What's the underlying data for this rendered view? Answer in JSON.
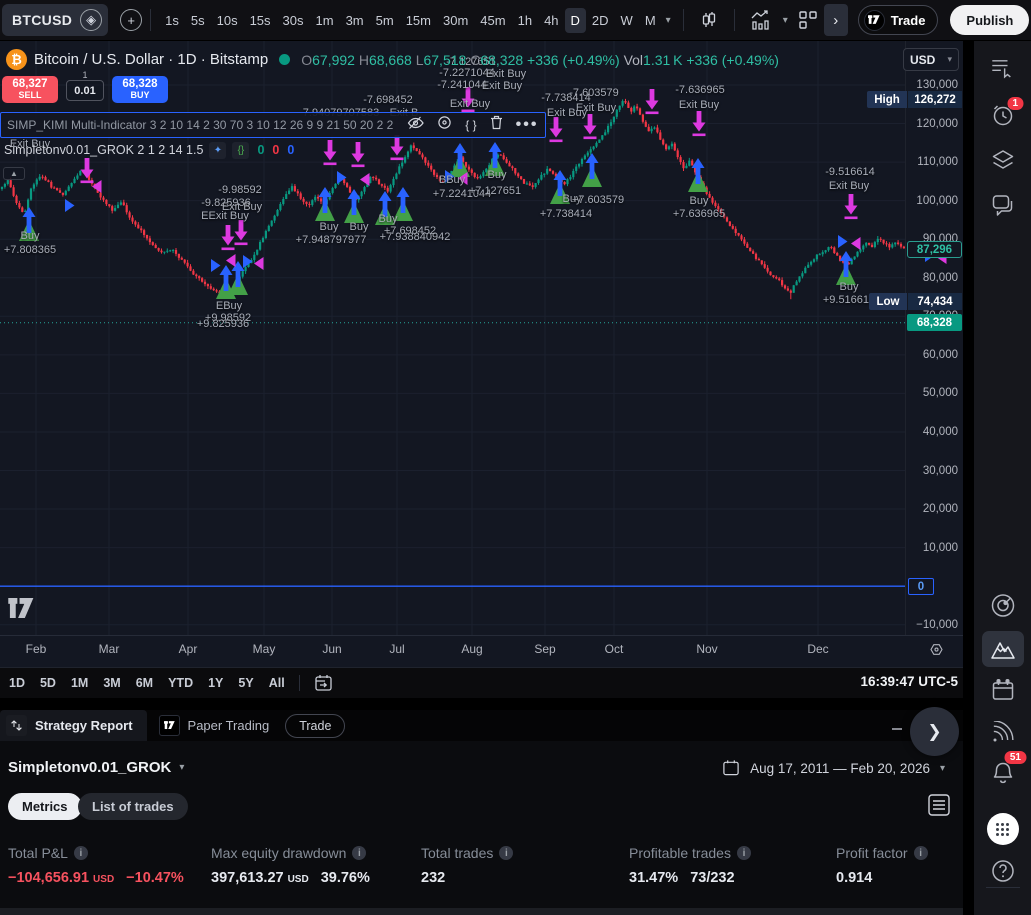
{
  "toolbar": {
    "symbol": "BTCUSD",
    "timeframes": [
      "1s",
      "5s",
      "10s",
      "15s",
      "30s",
      "1m",
      "3m",
      "5m",
      "15m",
      "30m",
      "45m",
      "1h",
      "4h",
      "D",
      "2D",
      "W",
      "M"
    ],
    "selected_timeframe": "D",
    "trade_label": "Trade",
    "publish_label": "Publish"
  },
  "header": {
    "title": "Bitcoin / U.S. Dollar · 1D · Bitstamp",
    "o_label": "O",
    "o": "67,992",
    "h_label": "H",
    "h": "68,668",
    "l_label": "L",
    "l": "67,518",
    "c_label": "C",
    "c": "68,328",
    "change": "+336 (+0.49%)",
    "vol_label": "Vol",
    "vol": "1.31 K",
    "vol_change": "+336 (+0.49%)",
    "currency": "USD"
  },
  "order_panel": {
    "sell_price": "68,327",
    "sell_label": "SELL",
    "spread_top": "1",
    "spread": "0.01",
    "buy_price": "68,328",
    "buy_label": "BUY"
  },
  "legend": {
    "row1": "SIMP_KIMI Multi-Indicator 3 2 10 14 2 30 70 3 10 12 26 9 9 21 50 20 2 2",
    "row2": "Simpletonv0.01_GROK 2 1 2 14 1.5",
    "row2_values": [
      "0",
      "0",
      "0"
    ],
    "row2_value_colors": [
      "#089981",
      "#f23645",
      "#2962ff"
    ]
  },
  "price_axis": {
    "high_label": "High",
    "high": "126,272",
    "low_label": "Low",
    "low": "74,434",
    "last": "87,296",
    "rt": "68,328",
    "zero": "0"
  },
  "bottom_toolbar": {
    "ranges": [
      "1D",
      "5D",
      "1M",
      "3M",
      "6M",
      "YTD",
      "1Y",
      "5Y",
      "All"
    ],
    "clock": "16:39:47 UTC-5"
  },
  "panel": {
    "tab_strategy": "Strategy Report",
    "tab_paper": "Paper Trading",
    "trade_button": "Trade",
    "strategy_name": "Simpletonv0.01_GROK",
    "date_range": "Aug 17, 2011 — Feb 20, 2026",
    "pill_metrics": "Metrics",
    "pill_trades": "List of trades",
    "metrics": [
      {
        "label": "Total P&L",
        "v1": "−104,656.91",
        "unit": "USD",
        "v2": "−10.47%",
        "color": "#f7525f",
        "x": 8
      },
      {
        "label": "Max equity drawdown",
        "v1": "397,613.27",
        "unit": "USD",
        "v2": "39.76%",
        "color": "#e6e9ef",
        "x": 211
      },
      {
        "label": "Total trades",
        "v1": "232",
        "unit": "",
        "v2": "",
        "color": "#e6e9ef",
        "x": 421
      },
      {
        "label": "Profitable trades",
        "v1": "31.47%",
        "unit": "",
        "v2": "73/232",
        "color": "#e6e9ef",
        "x": 629
      },
      {
        "label": "Profit factor",
        "v1": "0.914",
        "unit": "",
        "v2": "",
        "color": "#e6e9ef",
        "x": 836
      }
    ]
  },
  "sidebar": {
    "alerts_badge": "1",
    "notifications_badge": "51"
  },
  "chart_data": {
    "type": "candlestick",
    "symbol": "BTCUSD",
    "interval": "1D",
    "exchange": "Bitstamp",
    "ohlc": {
      "open": 67992,
      "high": 68668,
      "low": 67518,
      "close": 68328,
      "change": 336,
      "change_pct": 0.49
    },
    "visible_high": 126272,
    "visible_low": 74434,
    "last_price": 87296,
    "rt_price": 68328,
    "ylim": [
      -10000,
      130000
    ],
    "axis_ticks": [
      130000,
      120000,
      110000,
      100000,
      90000,
      80000,
      70000,
      60000,
      50000,
      40000,
      30000,
      20000,
      10000,
      -10000
    ],
    "months": [
      "Feb",
      "Mar",
      "Apr",
      "May",
      "Jun",
      "Jul",
      "Aug",
      "Sep",
      "Oct",
      "Nov",
      "Dec"
    ],
    "month_x": [
      36,
      109,
      188,
      264,
      332,
      397,
      472,
      545,
      614,
      707,
      818
    ],
    "zero_line_price": 0,
    "up_color": "#089981",
    "down_color": "#f23645",
    "buy_color": "#43a047",
    "entry_arrow_color": "#2962ff",
    "exit_color": "#dd39e0",
    "price_anchors": [
      [
        0,
        103000
      ],
      [
        8,
        105500
      ],
      [
        16,
        99500
      ],
      [
        24,
        96500
      ],
      [
        32,
        104000
      ],
      [
        42,
        106500
      ],
      [
        52,
        103500
      ],
      [
        62,
        101500
      ],
      [
        72,
        104500
      ],
      [
        82,
        108000
      ],
      [
        92,
        104500
      ],
      [
        102,
        100500
      ],
      [
        112,
        97500
      ],
      [
        122,
        99500
      ],
      [
        132,
        94500
      ],
      [
        142,
        92000
      ],
      [
        152,
        88500
      ],
      [
        162,
        86500
      ],
      [
        172,
        87500
      ],
      [
        182,
        84500
      ],
      [
        192,
        81500
      ],
      [
        202,
        79000
      ],
      [
        212,
        77000
      ],
      [
        220,
        76000
      ],
      [
        228,
        75200
      ],
      [
        236,
        78500
      ],
      [
        244,
        82000
      ],
      [
        252,
        85000
      ],
      [
        260,
        89000
      ],
      [
        268,
        93000
      ],
      [
        276,
        97000
      ],
      [
        284,
        101000
      ],
      [
        292,
        103500
      ],
      [
        300,
        101000
      ],
      [
        308,
        98500
      ],
      [
        316,
        101000
      ],
      [
        324,
        99000
      ],
      [
        332,
        103000
      ],
      [
        340,
        106000
      ],
      [
        348,
        103000
      ],
      [
        356,
        100000
      ],
      [
        364,
        103500
      ],
      [
        372,
        106500
      ],
      [
        380,
        104000
      ],
      [
        388,
        102500
      ],
      [
        396,
        107000
      ],
      [
        404,
        111000
      ],
      [
        412,
        114500
      ],
      [
        420,
        112000
      ],
      [
        428,
        109000
      ],
      [
        436,
        106000
      ],
      [
        444,
        104500
      ],
      [
        452,
        108000
      ],
      [
        460,
        111000
      ],
      [
        468,
        108500
      ],
      [
        476,
        105500
      ],
      [
        484,
        107500
      ],
      [
        492,
        110500
      ],
      [
        500,
        112000
      ],
      [
        508,
        109500
      ],
      [
        516,
        107000
      ],
      [
        524,
        104500
      ],
      [
        532,
        103500
      ],
      [
        540,
        106000
      ],
      [
        548,
        108500
      ],
      [
        556,
        106000
      ],
      [
        564,
        104000
      ],
      [
        572,
        107000
      ],
      [
        580,
        110000
      ],
      [
        588,
        112500
      ],
      [
        596,
        114500
      ],
      [
        604,
        117500
      ],
      [
        612,
        121000
      ],
      [
        618,
        124000
      ],
      [
        624,
        126000
      ],
      [
        630,
        123000
      ],
      [
        636,
        125000
      ],
      [
        642,
        121000
      ],
      [
        648,
        118000
      ],
      [
        654,
        119500
      ],
      [
        660,
        116000
      ],
      [
        666,
        113500
      ],
      [
        672,
        115000
      ],
      [
        678,
        111000
      ],
      [
        684,
        108500
      ],
      [
        690,
        110500
      ],
      [
        696,
        107000
      ],
      [
        702,
        104000
      ],
      [
        708,
        101000
      ],
      [
        714,
        99000
      ],
      [
        720,
        97000
      ],
      [
        726,
        95000
      ],
      [
        732,
        93000
      ],
      [
        738,
        91000
      ],
      [
        744,
        89000
      ],
      [
        750,
        87000
      ],
      [
        756,
        85000
      ],
      [
        762,
        83500
      ],
      [
        768,
        81500
      ],
      [
        774,
        80000
      ],
      [
        780,
        79000
      ],
      [
        786,
        77000
      ],
      [
        790,
        76000
      ],
      [
        794,
        78000
      ],
      [
        800,
        80500
      ],
      [
        806,
        82500
      ],
      [
        812,
        84500
      ],
      [
        818,
        86000
      ],
      [
        824,
        87000
      ],
      [
        830,
        88000
      ],
      [
        836,
        86000
      ],
      [
        842,
        84000
      ],
      [
        848,
        83500
      ],
      [
        854,
        85500
      ],
      [
        860,
        87500
      ],
      [
        866,
        89000
      ],
      [
        872,
        88000
      ],
      [
        878,
        90000
      ],
      [
        884,
        89000
      ],
      [
        890,
        88000
      ],
      [
        896,
        89000
      ],
      [
        902,
        87500
      ],
      [
        905,
        87296
      ]
    ],
    "buy_markers": [
      [
        29,
        166
      ],
      [
        226,
        224
      ],
      [
        238,
        220
      ],
      [
        325,
        146
      ],
      [
        354,
        148
      ],
      [
        385,
        150
      ],
      [
        403,
        146
      ],
      [
        460,
        102
      ],
      [
        495,
        101
      ],
      [
        560,
        129
      ],
      [
        592,
        112
      ],
      [
        698,
        117
      ],
      [
        846,
        210
      ]
    ],
    "exit_markers": [
      [
        87,
        117
      ],
      [
        228,
        184
      ],
      [
        241,
        179
      ],
      [
        330,
        99
      ],
      [
        358,
        101
      ],
      [
        397,
        94
      ],
      [
        468,
        46
      ],
      [
        556,
        76
      ],
      [
        590,
        73
      ],
      [
        652,
        48
      ],
      [
        699,
        70
      ],
      [
        851,
        153
      ]
    ],
    "entry_triangles": [
      [
        70,
        158
      ],
      [
        216,
        218
      ],
      [
        248,
        214
      ],
      [
        342,
        130
      ],
      [
        450,
        129
      ],
      [
        843,
        194
      ],
      [
        930,
        208
      ]
    ],
    "exit_triangles": [
      [
        97,
        139
      ],
      [
        231,
        213
      ],
      [
        259,
        216
      ],
      [
        365,
        132
      ],
      [
        463,
        131
      ],
      [
        856,
        196
      ],
      [
        942,
        210
      ]
    ],
    "annotations": [
      {
        "x": 30,
        "y": 97,
        "t": "Exit Buy"
      },
      {
        "x": 30,
        "y": 189,
        "t": "Buy"
      },
      {
        "x": 30,
        "y": 203,
        "t": "+7.808365"
      },
      {
        "x": 240,
        "y": 143,
        "t": "-9.98592"
      },
      {
        "x": 226,
        "y": 156,
        "t": "-9.825936"
      },
      {
        "x": 242,
        "y": 160,
        "t": "Exit Buy"
      },
      {
        "x": 225,
        "y": 169,
        "t": "EExit Buy"
      },
      {
        "x": 229,
        "y": 259,
        "t": "EBuy"
      },
      {
        "x": 228,
        "y": 271,
        "t": "+9.98592"
      },
      {
        "x": 223,
        "y": 277,
        "t": "+9.825936"
      },
      {
        "x": 341,
        "y": 66,
        "t": "7.94079707583"
      },
      {
        "x": 404,
        "y": 66,
        "t": "Exit B"
      },
      {
        "x": 388,
        "y": 53,
        "t": "-7.698452"
      },
      {
        "x": 471,
        "y": 15,
        "t": "-7.127651"
      },
      {
        "x": 467,
        "y": 26,
        "t": "-7.2271044"
      },
      {
        "x": 506,
        "y": 27,
        "t": "Exit Buy"
      },
      {
        "x": 462,
        "y": 38,
        "t": "-7.241044"
      },
      {
        "x": 502,
        "y": 39,
        "t": "Exit Buy"
      },
      {
        "x": 470,
        "y": 57,
        "t": "Exit Buy"
      },
      {
        "x": 594,
        "y": 46,
        "t": "-7.603579"
      },
      {
        "x": 596,
        "y": 61,
        "t": "Exit Buy"
      },
      {
        "x": 566,
        "y": 51,
        "t": "-7.738414"
      },
      {
        "x": 567,
        "y": 66,
        "t": "Exit Buy"
      },
      {
        "x": 700,
        "y": 43,
        "t": "-7.636965"
      },
      {
        "x": 699,
        "y": 58,
        "t": "Exit Buy"
      },
      {
        "x": 850,
        "y": 125,
        "t": "-9.516614"
      },
      {
        "x": 849,
        "y": 139,
        "t": "Exit Buy"
      },
      {
        "x": 329,
        "y": 180,
        "t": "Buy"
      },
      {
        "x": 359,
        "y": 180,
        "t": "Buy"
      },
      {
        "x": 331,
        "y": 193,
        "t": "+7.948797977"
      },
      {
        "x": 388,
        "y": 172,
        "t": "Buy"
      },
      {
        "x": 410,
        "y": 184,
        "t": "+7.698452"
      },
      {
        "x": 415,
        "y": 190,
        "t": "+7.938840942"
      },
      {
        "x": 452,
        "y": 133,
        "t": "BBuy"
      },
      {
        "x": 497,
        "y": 128,
        "t": "Buy"
      },
      {
        "x": 462,
        "y": 147,
        "t": "+7.2241044"
      },
      {
        "x": 495,
        "y": 144,
        "t": "+7.127651"
      },
      {
        "x": 572,
        "y": 152,
        "t": "Buy"
      },
      {
        "x": 598,
        "y": 153,
        "t": "+7.603579"
      },
      {
        "x": 566,
        "y": 167,
        "t": "+7.738414"
      },
      {
        "x": 699,
        "y": 154,
        "t": "Buy"
      },
      {
        "x": 699,
        "y": 167,
        "t": "+7.636965"
      },
      {
        "x": 849,
        "y": 240,
        "t": "Buy"
      },
      {
        "x": 849,
        "y": 253,
        "t": "+9.516614"
      }
    ]
  }
}
